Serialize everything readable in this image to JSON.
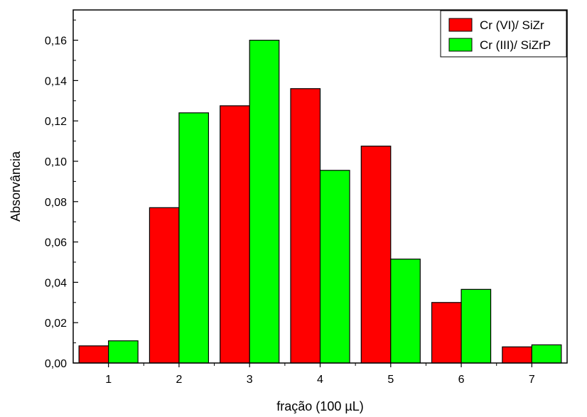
{
  "chart_data": {
    "type": "bar",
    "title": "",
    "xlabel": "fração (100 µL)",
    "ylabel": "Absorvância",
    "categories": [
      "1",
      "2",
      "3",
      "4",
      "5",
      "6",
      "7"
    ],
    "series": [
      {
        "name": "Cr (VI)/ SiZr",
        "color": "#ff0000",
        "values": [
          0.0085,
          0.077,
          0.1275,
          0.136,
          0.1075,
          0.03,
          0.008
        ]
      },
      {
        "name": "Cr (III)/ SiZrP",
        "color": "#00ff00",
        "values": [
          0.011,
          0.124,
          0.16,
          0.0955,
          0.0515,
          0.0365,
          0.009
        ]
      }
    ],
    "ylim": [
      0,
      0.175
    ],
    "yticks": [
      "0,00",
      "0,02",
      "0,04",
      "0,06",
      "0,08",
      "0,10",
      "0,12",
      "0,14",
      "0,16"
    ],
    "grid": false,
    "legend": "top-right"
  }
}
